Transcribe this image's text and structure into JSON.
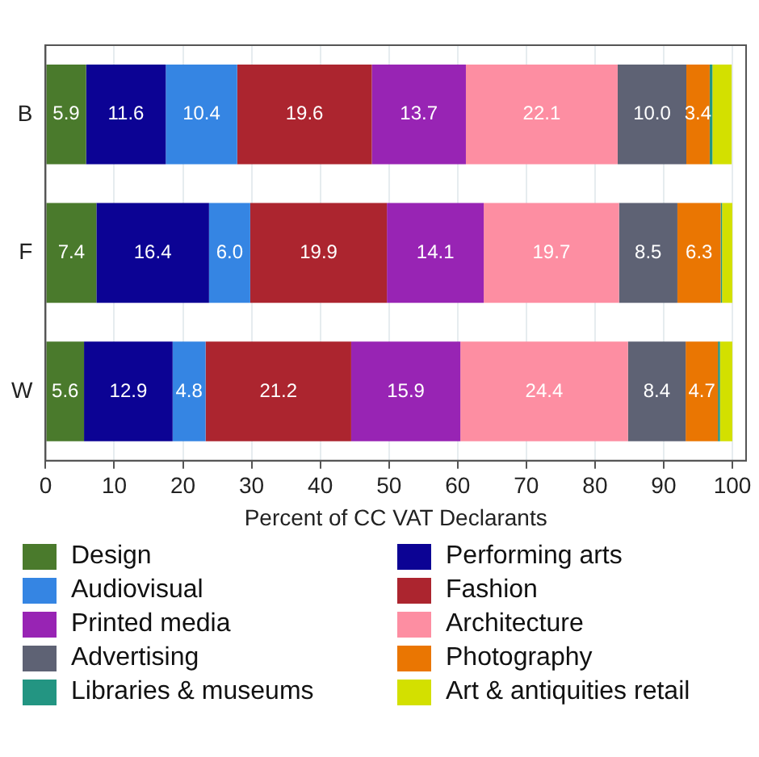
{
  "chart_data": {
    "type": "bar",
    "orientation": "horizontal",
    "stacked": true,
    "xlabel": "Percent of CC VAT Declarants",
    "categories": [
      "B",
      "F",
      "W"
    ],
    "xlim": [
      0,
      102
    ],
    "xticks": [
      0,
      10,
      20,
      30,
      40,
      50,
      60,
      70,
      80,
      90,
      100
    ],
    "grid": "x",
    "legend": "bottom",
    "series": [
      {
        "name": "Design",
        "color": "#4a7a2c",
        "values": [
          5.9,
          7.4,
          5.6
        ],
        "value_labels": [
          "5.9",
          "7.4",
          "5.6"
        ]
      },
      {
        "name": "Performing arts",
        "color": "#0c0394",
        "values": [
          11.6,
          16.4,
          12.9
        ],
        "value_labels": [
          "11.6",
          "16.4",
          "12.9"
        ]
      },
      {
        "name": "Audiovisual",
        "color": "#3585e3",
        "values": [
          10.4,
          6.0,
          4.8
        ],
        "value_labels": [
          "10.4",
          "6.0",
          "4.8"
        ]
      },
      {
        "name": "Fashion",
        "color": "#ac252f",
        "values": [
          19.6,
          19.9,
          21.2
        ],
        "value_labels": [
          "19.6",
          "19.9",
          "21.2"
        ]
      },
      {
        "name": "Printed media",
        "color": "#9824b4",
        "values": [
          13.7,
          14.1,
          15.9
        ],
        "value_labels": [
          "13.7",
          "14.1",
          "15.9"
        ]
      },
      {
        "name": "Architecture",
        "color": "#fd8ea2",
        "values": [
          22.1,
          19.7,
          24.4
        ],
        "value_labels": [
          "22.1",
          "19.7",
          "24.4"
        ]
      },
      {
        "name": "Advertising",
        "color": "#5e6274",
        "values": [
          10.0,
          8.5,
          8.4
        ],
        "value_labels": [
          "10.0",
          "8.5",
          "8.4"
        ]
      },
      {
        "name": "Photography",
        "color": "#ea7602",
        "values": [
          3.4,
          6.3,
          4.7
        ],
        "value_labels": [
          "3.4",
          "6.3",
          "4.7"
        ]
      },
      {
        "name": "Libraries & museums",
        "color": "#239582",
        "values": [
          0.4,
          0.2,
          0.3
        ],
        "value_labels": [
          null,
          null,
          null
        ]
      },
      {
        "name": "Art & antiquities retail",
        "color": "#d3e000",
        "values": [
          2.8,
          1.5,
          1.8
        ],
        "value_labels": [
          null,
          null,
          null
        ]
      }
    ]
  }
}
